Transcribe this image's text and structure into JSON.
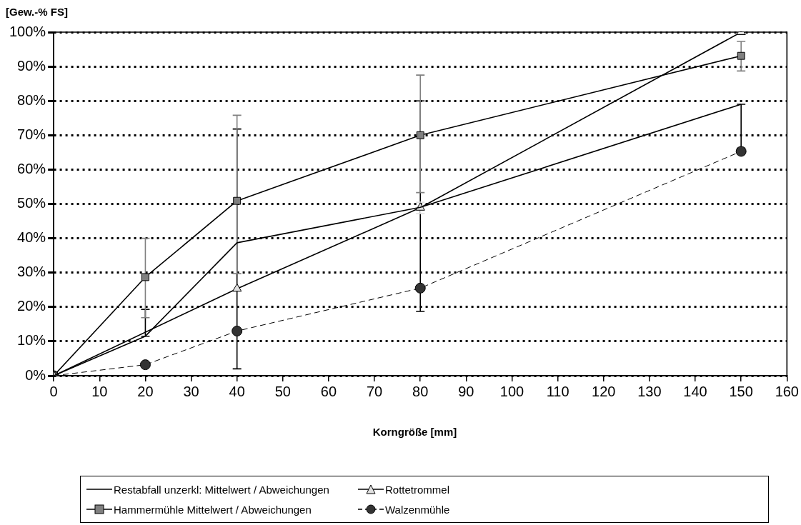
{
  "chart_data": {
    "type": "line",
    "ylabel": "[Gew.-% FS]",
    "xlabel": "Korngröße [mm]",
    "x": [
      0,
      20,
      40,
      80,
      150
    ],
    "series": [
      {
        "name": "Restabfall unzerkl: Mittelwert / Abweichungen",
        "color": "#000000",
        "marker": "none",
        "line_style": "solid",
        "values": [
          0,
          11.5,
          38.7,
          49,
          79
        ],
        "errors": [
          null,
          [
            11.5,
            19.3
          ],
          [
            2,
            71.8
          ],
          [
            18.7,
            80
          ],
          [
            66.2,
            79
          ]
        ]
      },
      {
        "name": "Rottetrommel",
        "color": "#e0e0e0",
        "marker": "triangle",
        "line_style": "solid",
        "values": [
          0,
          null,
          25.3,
          48.9,
          100
        ],
        "errors": [
          null,
          null,
          null,
          [
            47.2,
            50.5
          ],
          null
        ]
      },
      {
        "name": "Hammermühle Mittelwert / Abweichungen",
        "color": "#808080",
        "marker": "square",
        "line_style": "solid",
        "values": [
          0,
          28.7,
          50.9,
          70,
          93.1
        ],
        "errors": [
          null,
          [
            16.9,
            40
          ],
          [
            29.7,
            75.8
          ],
          [
            53.3,
            87.5
          ],
          [
            88.7,
            97.3
          ]
        ]
      },
      {
        "name": "Walzenmühle",
        "color": "#333333",
        "marker": "circle",
        "line_style": "dashed",
        "values": [
          0,
          3.2,
          13,
          25.5,
          65.3
        ]
      }
    ],
    "xlim": [
      0,
      160
    ],
    "xticks": [
      0,
      10,
      20,
      30,
      40,
      50,
      60,
      70,
      80,
      90,
      100,
      110,
      120,
      130,
      140,
      150,
      160
    ],
    "ylim": [
      0,
      100
    ],
    "yticks": [
      {
        "value": 0,
        "label": "0%"
      },
      {
        "value": 10,
        "label": "10%"
      },
      {
        "value": 20,
        "label": "20%"
      },
      {
        "value": 30,
        "label": "30%"
      },
      {
        "value": 40,
        "label": "40%"
      },
      {
        "value": 50,
        "label": "50%"
      },
      {
        "value": 60,
        "label": "60%"
      },
      {
        "value": 70,
        "label": "70%"
      },
      {
        "value": 80,
        "label": "80%"
      },
      {
        "value": 90,
        "label": "90%"
      },
      {
        "value": 100,
        "label": "100%"
      }
    ],
    "grid": "y",
    "legend": "bottom"
  }
}
